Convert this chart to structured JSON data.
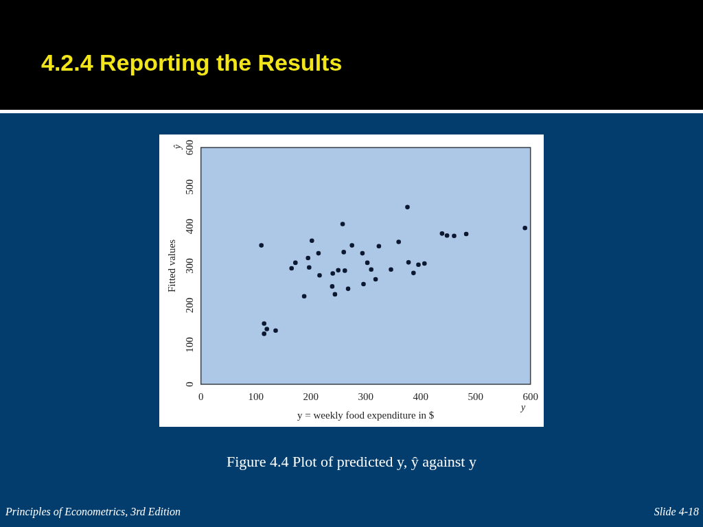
{
  "chart_data": {
    "type": "scatter",
    "title": "4.2.4 Reporting the Results",
    "xlabel": "y = weekly food expenditure in $",
    "ylabel": "Fitted values",
    "annotations": [
      "Figure 4.4 Plot of predicted y, ŷ against y",
      "Principles of Econometrics, 3rd Edition",
      "Slide 4-18",
      "ŷ",
      "y"
    ],
    "x": [
      110,
      115,
      120,
      115,
      136,
      165,
      172,
      188,
      195,
      197,
      202,
      214,
      216,
      239,
      240,
      244,
      250,
      258,
      260,
      262,
      268,
      275,
      294,
      296,
      303,
      310,
      318,
      324,
      346,
      360,
      376,
      378,
      387,
      396,
      407,
      439,
      448,
      461,
      483,
      590
    ],
    "series": [
      {
        "color": "#0b1830",
        "values": [
          352,
          154,
          140,
          128,
          136,
          294,
          308,
          223,
          320,
          296,
          364,
          332,
          276,
          248,
          281,
          228,
          289,
          406,
          335,
          288,
          242,
          352,
          332,
          254,
          308,
          291,
          266,
          350,
          291,
          361,
          449,
          309,
          282,
          303,
          306,
          382,
          377,
          376,
          381,
          396
        ]
      }
    ],
    "xlim": [
      0,
      600
    ],
    "ylim": [
      0,
      600
    ],
    "xticks": [
      0,
      100,
      200,
      300,
      400,
      500,
      600
    ],
    "yticks": [
      0,
      100,
      200,
      300,
      400,
      500,
      600
    ],
    "marker": "circle"
  }
}
